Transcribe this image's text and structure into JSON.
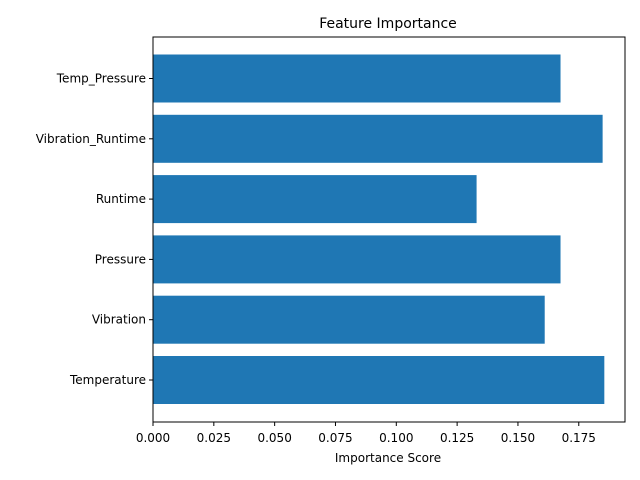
{
  "chart_data": {
    "type": "bar",
    "orientation": "horizontal",
    "title": "Feature Importance",
    "xlabel": "Importance Score",
    "ylabel": "",
    "categories": [
      "Temperature",
      "Vibration",
      "Pressure",
      "Runtime",
      "Vibration_Runtime",
      "Temp_Pressure"
    ],
    "values": [
      0.1855,
      0.161,
      0.1675,
      0.133,
      0.1848,
      0.1675
    ],
    "xlim": [
      0,
      0.194
    ],
    "xticks": [
      0.0,
      0.025,
      0.05,
      0.075,
      0.1,
      0.125,
      0.15,
      0.175
    ],
    "xtick_labels": [
      "0.000",
      "0.025",
      "0.050",
      "0.075",
      "0.100",
      "0.125",
      "0.150",
      "0.175"
    ],
    "bar_color": "#1f77b4",
    "grid": false,
    "legend": "none"
  }
}
